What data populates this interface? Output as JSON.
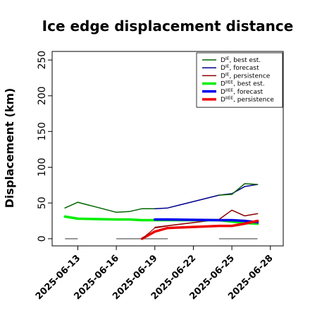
{
  "chart_data": {
    "type": "line",
    "title": "Ice edge displacement distance",
    "ylabel": "Displacement (km)",
    "xlabel": "",
    "ylim": [
      0,
      260
    ],
    "yticks": [
      0,
      50,
      100,
      150,
      200,
      250
    ],
    "xlim": [
      "2025-06-11",
      "2025-06-29"
    ],
    "xticks": [
      {
        "date": "2025-06-13",
        "label": "2025-06-13",
        "color": "#000000"
      },
      {
        "date": "2025-06-16",
        "label": "2025-06-16",
        "color": "#000000"
      },
      {
        "date": "2025-06-19",
        "label": "2025-06-19",
        "color": "#228B22"
      },
      {
        "date": "2025-06-22",
        "label": "2025-06-22",
        "color": "#000000"
      },
      {
        "date": "2025-06-25",
        "label": "2025-06-25",
        "color": "#000000"
      },
      {
        "date": "2025-06-28",
        "label": "2025-06-28",
        "color": "#000000"
      }
    ],
    "legend_position": "top-right",
    "series": [
      {
        "name": "D^IE, best est.",
        "legend_main": "D",
        "legend_sup": "IE",
        "legend_suffix": ", best est.",
        "color": "#006400",
        "width": 1.5,
        "x": [
          "2025-06-12",
          "2025-06-13",
          "2025-06-16",
          "2025-06-17",
          "2025-06-18",
          "2025-06-19"
        ],
        "y": [
          43,
          51,
          37,
          38,
          42,
          42
        ]
      },
      {
        "name": "D^IE, forecast",
        "legend_main": "D",
        "legend_sup": "IE",
        "legend_suffix": ", forecast",
        "color": "#00008B",
        "width": 1.5,
        "x": [
          "2025-06-19",
          "2025-06-20",
          "2025-06-24",
          "2025-06-25",
          "2025-06-26",
          "2025-06-27"
        ],
        "y": [
          42,
          43,
          61,
          63,
          73,
          76
        ]
      },
      {
        "name": "D^IE, best est. (2)",
        "legend": false,
        "color": "#006400",
        "width": 1.5,
        "x": [
          "2025-06-24",
          "2025-06-25",
          "2025-06-26",
          "2025-06-27"
        ],
        "y": [
          61,
          62,
          77,
          76
        ]
      },
      {
        "name": "D^IE, persistence",
        "legend_main": "D",
        "legend_sup": "IE",
        "legend_suffix": ", persistence",
        "color": "#8B0000",
        "width": 1.5,
        "x": [
          "2025-06-19",
          "2025-06-24",
          "2025-06-25",
          "2025-06-26",
          "2025-06-27"
        ],
        "y": [
          16,
          27,
          40,
          32,
          35
        ]
      },
      {
        "name": "D^IIEE, best est.",
        "legend_main": "D",
        "legend_sup": "IIEE",
        "legend_suffix": ", best est.",
        "color": "#00EE00",
        "width": 3.5,
        "x": [
          "2025-06-12",
          "2025-06-13",
          "2025-06-16",
          "2025-06-17",
          "2025-06-18",
          "2025-06-19",
          "2025-06-24",
          "2025-06-25",
          "2025-06-26",
          "2025-06-27"
        ],
        "y": [
          31,
          28,
          27,
          27,
          26,
          26,
          26,
          24,
          22,
          21
        ]
      },
      {
        "name": "D^IIEE, forecast",
        "legend_main": "D",
        "legend_sup": "IIEE",
        "legend_suffix": ", forecast",
        "color": "#0000EE",
        "width": 3.5,
        "x": [
          "2025-06-19",
          "2025-06-20",
          "2025-06-24",
          "2025-06-25",
          "2025-06-26",
          "2025-06-27"
        ],
        "y": [
          27,
          27,
          26,
          26,
          25,
          23
        ]
      },
      {
        "name": "D^IIEE, persistence",
        "legend_main": "D",
        "legend_sup": "IIEE",
        "legend_suffix": ", persistence",
        "color": "#EE0000",
        "width": 3.5,
        "x": [
          "2025-06-18",
          "2025-06-19",
          "2025-06-20",
          "2025-06-24",
          "2025-06-25",
          "2025-06-26",
          "2025-06-27"
        ],
        "y": [
          0,
          10,
          15,
          18,
          18,
          21,
          25
        ]
      },
      {
        "name": "D^IE, persistence (thin)",
        "legend": false,
        "color": "#8B0000",
        "width": 1.2,
        "x": [
          "2025-06-18",
          "2025-06-19",
          "2025-06-20"
        ],
        "y": [
          0,
          15,
          18
        ]
      }
    ],
    "baseline_segments": [
      {
        "x": [
          "2025-06-12",
          "2025-06-13"
        ],
        "y": 0
      },
      {
        "x": [
          "2025-06-16",
          "2025-06-20"
        ],
        "y": 0
      },
      {
        "x": [
          "2025-06-24",
          "2025-06-27"
        ],
        "y": 0
      }
    ]
  }
}
